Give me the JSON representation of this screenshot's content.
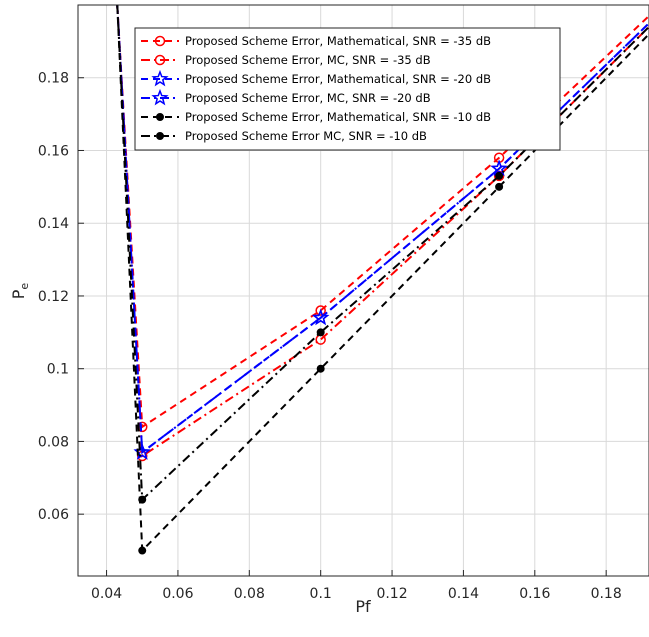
{
  "chart_data": {
    "type": "line",
    "title": "",
    "xlabel": "Pf",
    "ylabel": "Pe",
    "xlim": [
      0.032,
      0.192
    ],
    "ylim": [
      0.043,
      0.2
    ],
    "xticks": [
      0.04,
      0.06,
      0.08,
      0.1,
      0.12,
      0.14,
      0.16,
      0.18
    ],
    "xtick_labels": [
      "0.04",
      "0.06",
      "0.08",
      "0.1",
      "0.12",
      "0.14",
      "0.16",
      "0.18"
    ],
    "yticks": [
      0.06,
      0.08,
      0.1,
      0.12,
      0.14,
      0.16,
      0.18
    ],
    "ytick_labels": [
      "0.06",
      "0.08",
      "0.1",
      "0.12",
      "0.14",
      "0.16",
      "0.18"
    ],
    "grid": true,
    "legend_position": "top-right",
    "series": [
      {
        "name": "Proposed Scheme Error, Mathematical, SNR = -35 dB",
        "color": "#ff0000",
        "dash": "dashed",
        "marker": "circle-open",
        "x": [
          0.043,
          0.05,
          0.1,
          0.15,
          0.192
        ],
        "y": [
          0.2,
          0.084,
          0.116,
          0.158,
          0.197
        ]
      },
      {
        "name": "Proposed Scheme Error, MC, SNR = -35 dB",
        "color": "#ff0000",
        "dash": "dashdot",
        "marker": "circle-open",
        "x": [
          0.043,
          0.05,
          0.1,
          0.15,
          0.192
        ],
        "y": [
          0.2,
          0.076,
          0.108,
          0.153,
          0.194
        ]
      },
      {
        "name": "Proposed Scheme Error, Mathematical, SNR = -20 dB",
        "color": "#0000ff",
        "dash": "dashed",
        "marker": "star",
        "x": [
          0.043,
          0.05,
          0.1,
          0.15,
          0.192
        ],
        "y": [
          0.2,
          0.077,
          0.114,
          0.155,
          0.195
        ]
      },
      {
        "name": "Proposed Scheme Error, MC, SNR = -20 dB",
        "color": "#0000ff",
        "dash": "dashdot",
        "marker": "star",
        "x": [
          0.043,
          0.05,
          0.1,
          0.15,
          0.192
        ],
        "y": [
          0.2,
          0.077,
          0.114,
          0.155,
          0.195
        ]
      },
      {
        "name": "Proposed Scheme Error, Mathematical, SNR = -10 dB",
        "color": "#000000",
        "dash": "dashed",
        "marker": "dot",
        "x": [
          0.043,
          0.05,
          0.1,
          0.15,
          0.192
        ],
        "y": [
          0.2,
          0.05,
          0.1,
          0.15,
          0.192
        ]
      },
      {
        "name": "Proposed Scheme Error MC, SNR = -10 dB",
        "color": "#000000",
        "dash": "dashdot",
        "marker": "dot",
        "x": [
          0.043,
          0.05,
          0.1,
          0.15,
          0.192
        ],
        "y": [
          0.2,
          0.064,
          0.11,
          0.153,
          0.194
        ]
      }
    ]
  }
}
